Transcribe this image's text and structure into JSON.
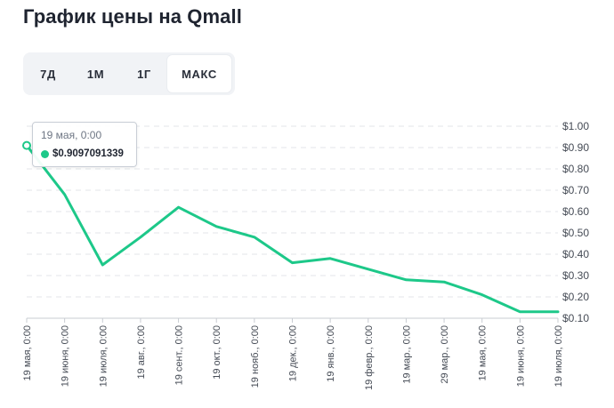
{
  "title": "График цены на Qmall",
  "tabs": [
    {
      "label": "7Д",
      "active": false
    },
    {
      "label": "1М",
      "active": false
    },
    {
      "label": "1Г",
      "active": false
    },
    {
      "label": "МАКС",
      "active": true
    }
  ],
  "tooltip": {
    "date": "19 мая, 0:00",
    "value": "$0.9097091339"
  },
  "colors": {
    "line": "#1dc889",
    "grid": "#e3e6ea",
    "axis_text": "#454b55",
    "tab_bg": "#f1f3f6"
  },
  "chart_data": {
    "type": "line",
    "title": "График цены на Qmall",
    "xlabel": "",
    "ylabel": "",
    "ylim": [
      0.1,
      1.0
    ],
    "yticks": [
      1.0,
      0.9,
      0.8,
      0.7,
      0.6,
      0.5,
      0.4,
      0.3,
      0.2,
      0.1
    ],
    "ytick_labels": [
      "$1.00",
      "$0.90",
      "$0.80",
      "$0.70",
      "$0.60",
      "$0.50",
      "$0.40",
      "$0.30",
      "$0.20",
      "$0.10"
    ],
    "grid": true,
    "xtick_labels": [
      "19 мая, 0:00",
      "19 июня, 0:00",
      "19 июля, 0:00",
      "19 авг., 0:00",
      "19 сент., 0:00",
      "19 окт., 0:00",
      "19 нояб., 0:00",
      "19 дек., 0:00",
      "19 янв., 0:00",
      "19 февр., 0:00",
      "19 мар., 0:00",
      "29 мар., 0:00",
      "19 мая, 0:00",
      "19 июня, 0:00",
      "19 июля, 0:00"
    ],
    "series": [
      {
        "name": "Qmall",
        "values": [
          0.91,
          0.68,
          0.35,
          0.48,
          0.62,
          0.53,
          0.48,
          0.36,
          0.38,
          0.33,
          0.28,
          0.27,
          0.21,
          0.13,
          0.13
        ]
      }
    ]
  }
}
